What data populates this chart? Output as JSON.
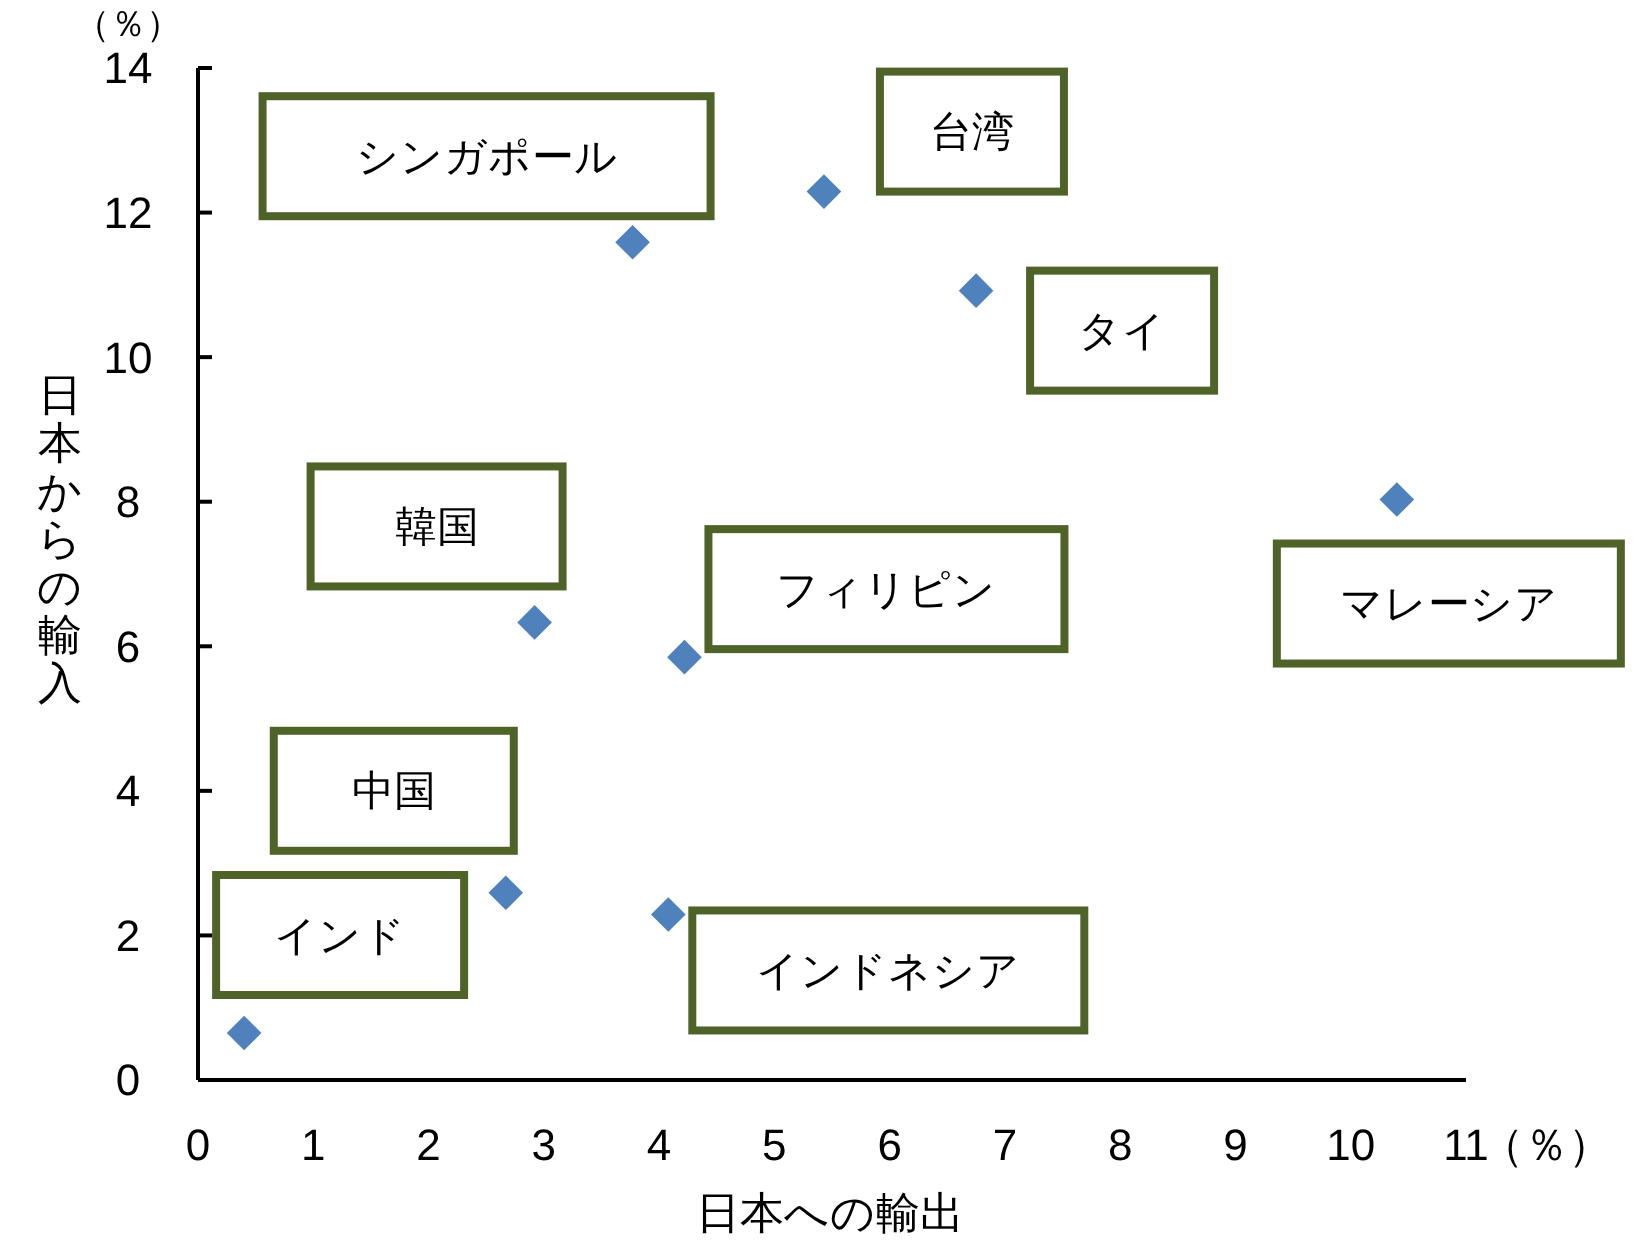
{
  "chart_data": {
    "type": "scatter",
    "xlabel": "日本への輸出",
    "ylabel": "日本からの輸入",
    "xlim": [
      0,
      11
    ],
    "xticks": [
      0,
      1,
      2,
      3,
      4,
      5,
      6,
      7,
      8,
      9,
      10,
      11
    ],
    "ylim": [
      0,
      14
    ],
    "yticks": [
      0,
      2,
      4,
      6,
      8,
      10,
      12,
      14
    ],
    "grid": false,
    "marker": "diamond",
    "series": [
      {
        "color": "#4f81bd",
        "x": [
          0.4,
          2.67,
          2.92,
          4.22,
          4.08,
          3.77,
          5.43,
          6.75,
          10.4
        ],
        "values": [
          0.65,
          2.59,
          6.33,
          5.85,
          2.29,
          11.59,
          12.29,
          10.92,
          8.03
        ]
      }
    ],
    "annotations": [
      "（％）",
      "（％）",
      {
        "text": "インド",
        "x": 0.4,
        "y": 0.65
      },
      {
        "text": "中国",
        "x": 2.67,
        "y": 2.59
      },
      {
        "text": "韓国",
        "x": 2.92,
        "y": 6.33
      },
      {
        "text": "フィリピン",
        "x": 4.22,
        "y": 5.85
      },
      {
        "text": "インドネシア",
        "x": 4.08,
        "y": 2.29
      },
      {
        "text": "シンガポール",
        "x": 3.77,
        "y": 11.59
      },
      {
        "text": "台湾",
        "x": 5.43,
        "y": 12.29
      },
      {
        "text": "タイ",
        "x": 6.75,
        "y": 10.92
      },
      {
        "text": "マレーシア",
        "x": 10.4,
        "y": 8.03
      }
    ]
  }
}
